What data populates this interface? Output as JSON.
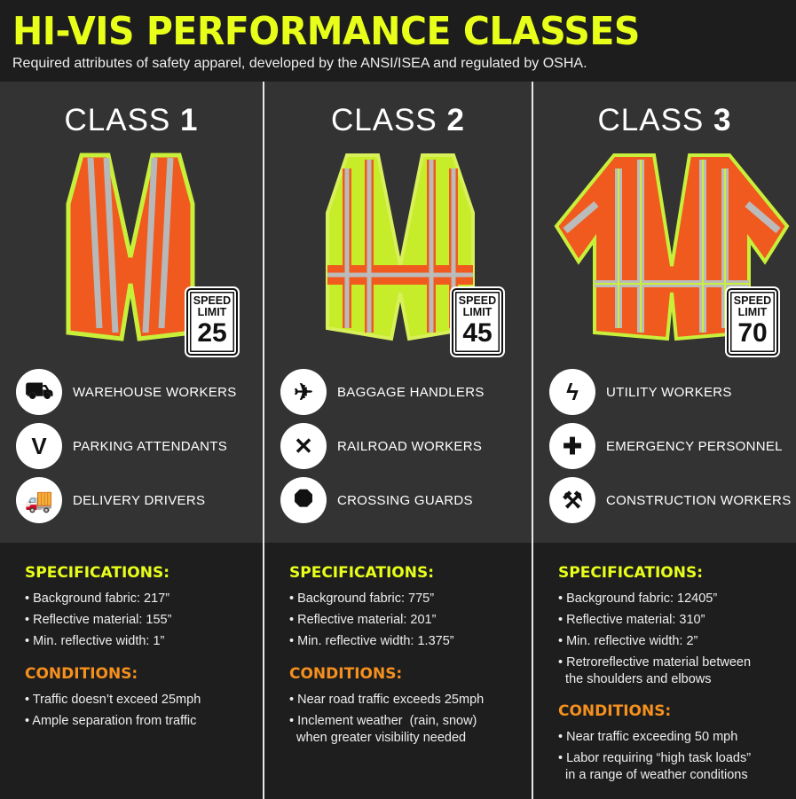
{
  "header": {
    "title": "HI-VIS PERFORMANCE CLASSES",
    "subtitle": "Required attributes of safety apparel, developed by the ANSI/ISEA and regulated by OSHA."
  },
  "colors": {
    "title": "#e8ff1a",
    "specifications_heading": "#e8ff1a",
    "conditions_heading": "#f5901e",
    "background": "#1b1b1b"
  },
  "classes": [
    {
      "label": "CLASS",
      "number": "1",
      "vest_color": "#f05a1e",
      "trim_color": "#c8f03a",
      "sign": {
        "line1": "SPEED",
        "line2": "LIMIT",
        "value": "25"
      },
      "jobs": [
        {
          "icon": "forklift-icon",
          "label": "WAREHOUSE WORKERS"
        },
        {
          "icon": "bowtie-vest-icon",
          "label": "PARKING ATTENDANTS"
        },
        {
          "icon": "delivery-truck-icon",
          "label": "DELIVERY DRIVERS"
        }
      ],
      "specifications_heading": "SPECIFICATIONS:",
      "specifications": [
        "• Background fabric: 217”",
        "• Reflective material: 155”",
        "• Min. reflective width: 1”"
      ],
      "conditions_heading": "CONDITIONS:",
      "conditions": [
        "• Traffic doesn’t exceed 25mph",
        "• Ample separation from traffic"
      ]
    },
    {
      "label": "CLASS",
      "number": "2",
      "vest_color": "#c6ec2a",
      "trim_color": "#f05a1e",
      "sign": {
        "line1": "SPEED",
        "line2": "LIMIT",
        "value": "45"
      },
      "jobs": [
        {
          "icon": "suitcase-plane-icon",
          "label": "BAGGAGE HANDLERS"
        },
        {
          "icon": "railroad-crossing-icon",
          "label": "RAILROAD WORKERS"
        },
        {
          "icon": "stop-sign-icon",
          "label": "CROSSING GUARDS"
        }
      ],
      "specifications_heading": "SPECIFICATIONS:",
      "specifications": [
        "• Background fabric: 775”",
        "• Reflective material: 201”",
        "• Min. reflective width: 1.375”"
      ],
      "conditions_heading": "CONDITIONS:",
      "conditions": [
        "• Near road traffic exceeds 25mph",
        "• Inclement weather  (rain, snow)\n  when greater visibility needed"
      ]
    },
    {
      "label": "CLASS",
      "number": "3",
      "vest_color": "#f05a1e",
      "trim_color": "#c8f03a",
      "sign": {
        "line1": "SPEED",
        "line2": "LIMIT",
        "value": "70"
      },
      "jobs": [
        {
          "icon": "lightning-drop-icon",
          "label": "UTILITY WORKERS"
        },
        {
          "icon": "medical-cross-icon",
          "label": "EMERGENCY PERSONNEL"
        },
        {
          "icon": "hammer-icon",
          "label": "CONSTRUCTION WORKERS"
        }
      ],
      "specifications_heading": "SPECIFICATIONS:",
      "specifications": [
        "• Background fabric: 12405”",
        "• Reflective material: 310”",
        "• Min. reflective width: 2”",
        "• Retroreflective material between\n  the shoulders and elbows"
      ],
      "conditions_heading": "CONDITIONS:",
      "conditions": [
        "• Near traffic exceeding 50 mph",
        "• Labor requiring “high task loads”\n  in a range of weather conditions"
      ]
    }
  ]
}
